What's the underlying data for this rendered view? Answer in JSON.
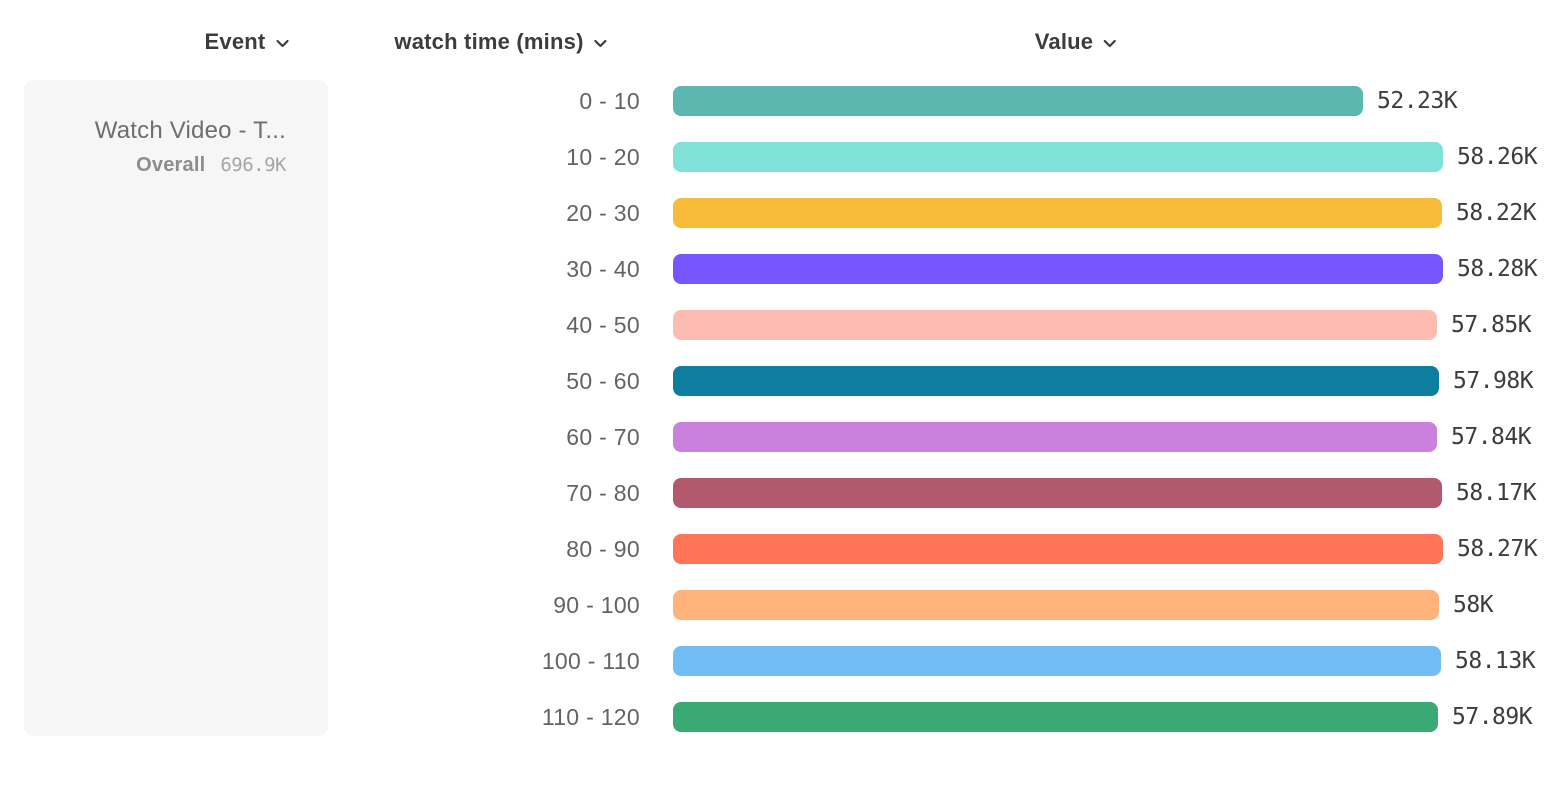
{
  "columns": {
    "event": {
      "label": "Event",
      "icon": "chevron-down"
    },
    "breakdown": {
      "label": "watch time (mins)",
      "icon": "chevron-down"
    },
    "value": {
      "label": "Value",
      "icon": "chevron-down"
    }
  },
  "event_card": {
    "title": "Watch Video - T...",
    "overall_label": "Overall",
    "overall_value": "696.9K"
  },
  "chart_data": {
    "type": "bar",
    "orientation": "horizontal",
    "title": "",
    "xlabel": "Value",
    "ylabel": "watch time (mins)",
    "xlim": [
      0,
      58280
    ],
    "grid": false,
    "legend": "none",
    "categories": [
      "0 - 10",
      "10 - 20",
      "20 - 30",
      "30 - 40",
      "40 - 50",
      "50 - 60",
      "60 - 70",
      "70 - 80",
      "80 - 90",
      "90 - 100",
      "100 - 110",
      "110 - 120"
    ],
    "values": [
      52230,
      58260,
      58220,
      58280,
      57850,
      57980,
      57840,
      58170,
      58270,
      58000,
      58130,
      57890
    ],
    "value_labels": [
      "52.23K",
      "58.26K",
      "58.22K",
      "58.28K",
      "57.85K",
      "57.98K",
      "57.84K",
      "58.17K",
      "58.27K",
      "58K",
      "58.13K",
      "57.89K"
    ],
    "colors": [
      "#5BB7AF",
      "#80E1D9",
      "#F8BC3B",
      "#7856FF",
      "#FEBBB2",
      "#0D7EA0",
      "#CA80DC",
      "#B2596E",
      "#FF7557",
      "#FFB27A",
      "#72BEF4",
      "#3BA974"
    ]
  }
}
